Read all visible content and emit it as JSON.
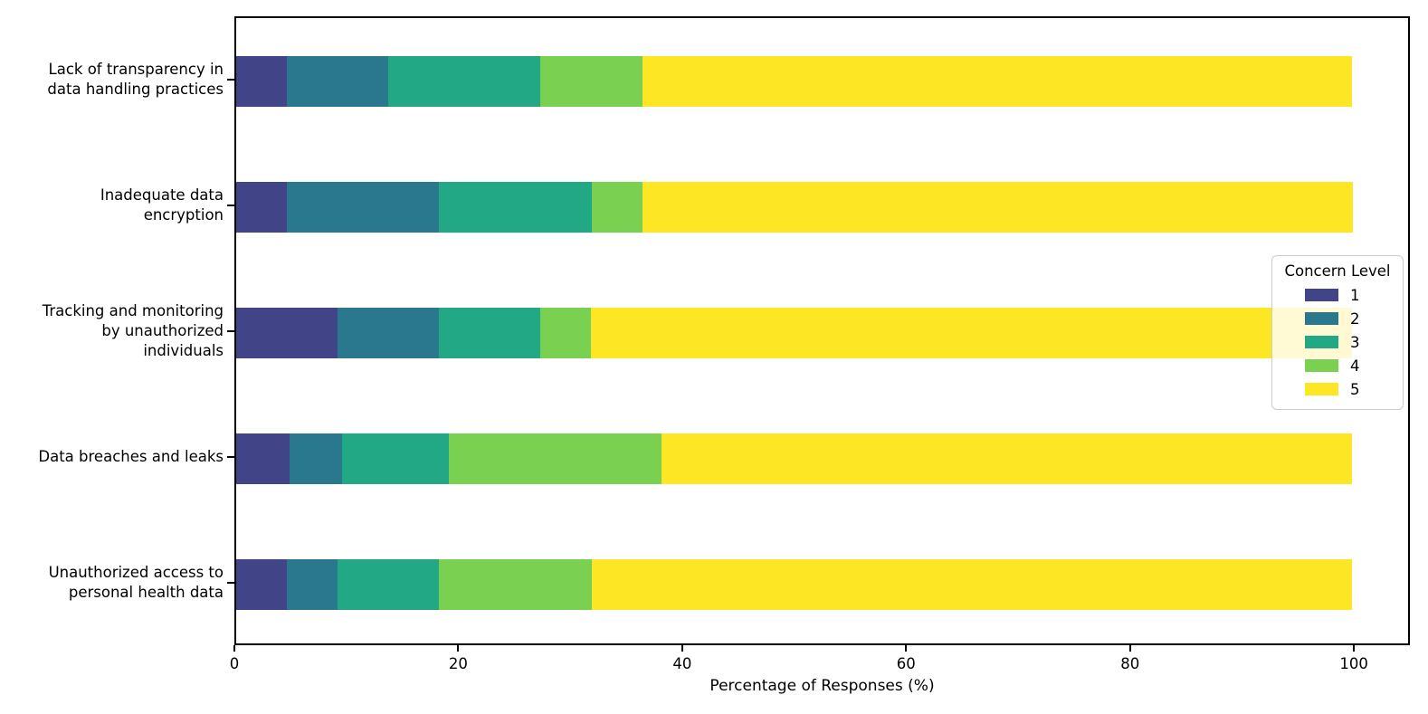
{
  "chart_data": {
    "type": "bar",
    "orientation": "horizontal",
    "stacked": true,
    "title": "",
    "xlabel": "Percentage of Responses (%)",
    "ylabel": "",
    "xlim": [
      0,
      105
    ],
    "xticks": [
      0,
      20,
      40,
      60,
      80,
      100
    ],
    "grid": false,
    "categories": [
      "Lack of transparency in\ndata handling practices",
      "Inadequate data\nencryption",
      "Tracking and monitoring\nby unauthorized\nindividuals",
      "Data breaches and leaks",
      "Unauthorized access to\npersonal health data"
    ],
    "series": [
      {
        "name": "1",
        "color": "#414487",
        "values": [
          4.55,
          4.55,
          9.09,
          4.76,
          4.55
        ]
      },
      {
        "name": "2",
        "color": "#2a788e",
        "values": [
          9.09,
          13.64,
          9.09,
          4.76,
          4.55
        ]
      },
      {
        "name": "3",
        "color": "#22a884",
        "values": [
          13.64,
          13.64,
          9.09,
          9.52,
          9.09
        ]
      },
      {
        "name": "4",
        "color": "#7ad151",
        "values": [
          9.09,
          4.55,
          4.55,
          19.05,
          13.64
        ]
      },
      {
        "name": "5",
        "color": "#fde725",
        "values": [
          63.64,
          63.64,
          68.18,
          61.9,
          68.18
        ]
      }
    ],
    "legend": {
      "title": "Concern Level",
      "position": "right",
      "entries": [
        "1",
        "2",
        "3",
        "4",
        "5"
      ]
    }
  }
}
